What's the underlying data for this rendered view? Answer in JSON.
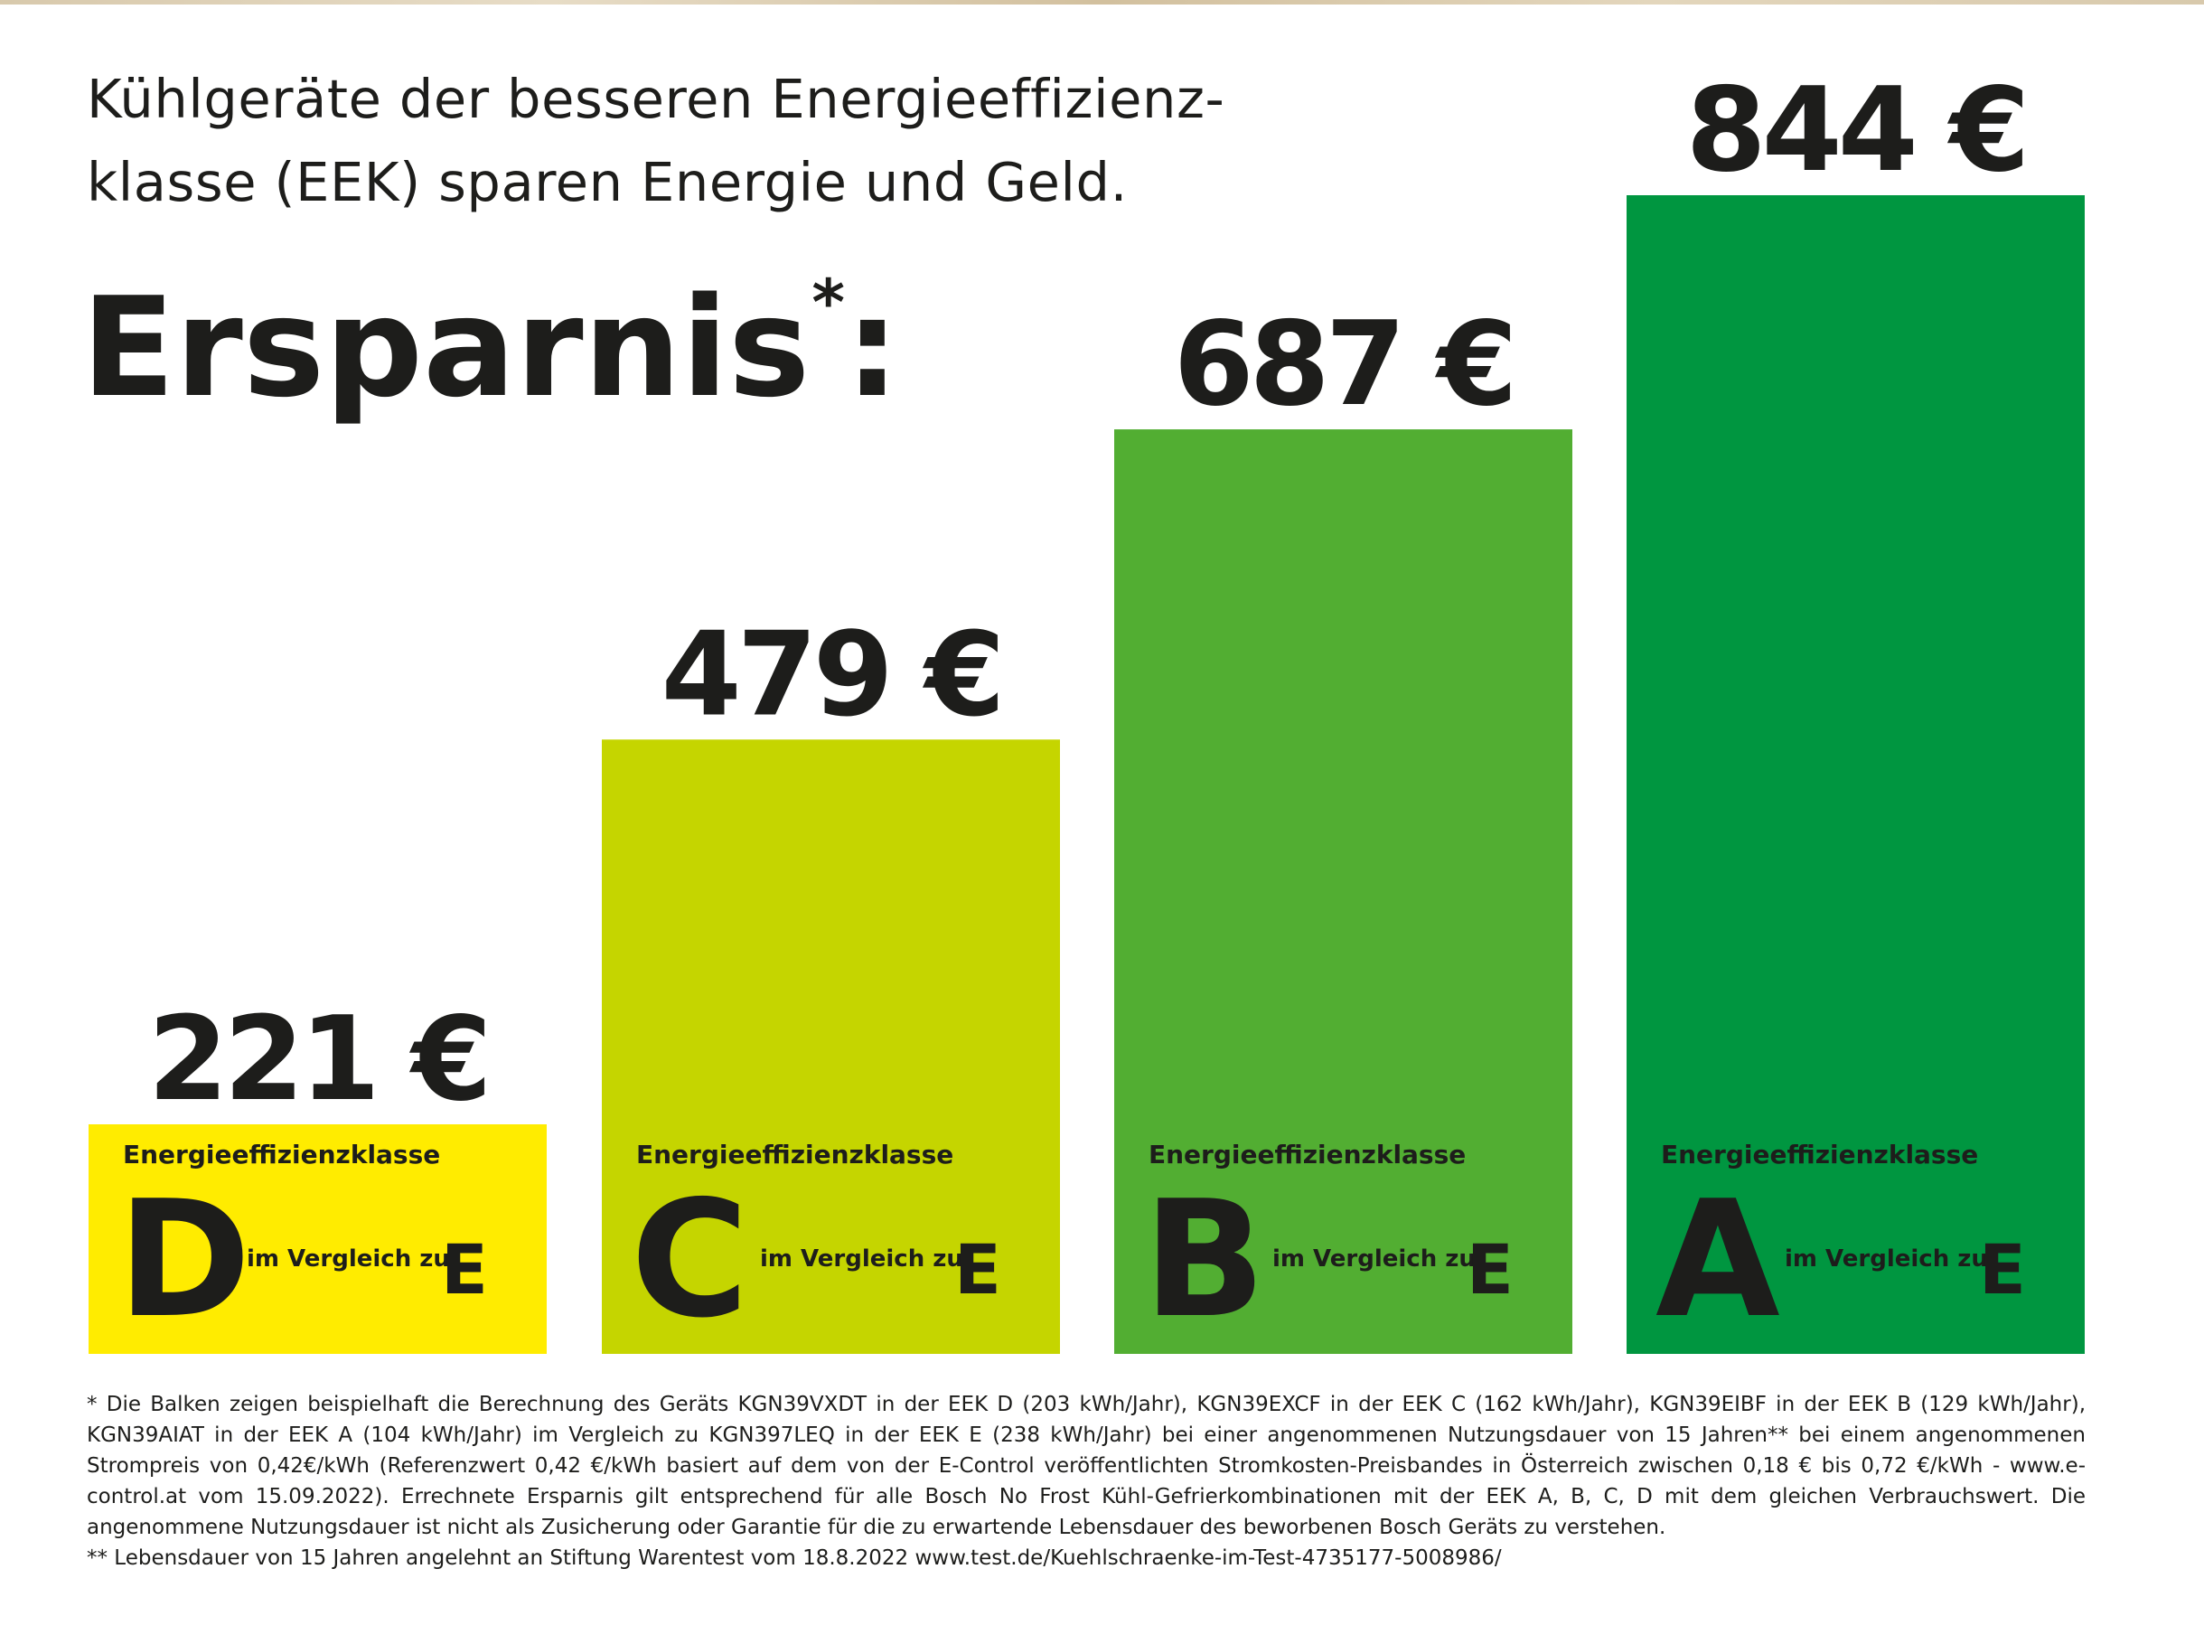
{
  "intro": {
    "line1": "Kühlgeräte der besseren Energieeffizienz-",
    "line2": "klasse (EEK) sparen Energie und Geld."
  },
  "headline": {
    "text": "Ersparnis",
    "asterisk": "*",
    "colon": ":"
  },
  "chart_data": {
    "type": "bar",
    "title": "Ersparnis*:",
    "categories": [
      "D",
      "C",
      "B",
      "A"
    ],
    "values": [
      221,
      479,
      687,
      844
    ],
    "value_labels": [
      "221 €",
      "479 €",
      "687 €",
      "844 €"
    ],
    "unit": "€",
    "colors": [
      "#ffec00",
      "#c5d500",
      "#52ae32",
      "#009640"
    ],
    "class_label": "Energieeffizienzklasse",
    "comparison_text": "im Vergleich zu",
    "reference_class": "E",
    "ylim": [
      0,
      844
    ],
    "grid": false,
    "legend": "none"
  },
  "footnotes": {
    "note1": "* Die Balken zeigen beispielhaft die Berechnung des Geräts KGN39VXDT in der EEK D (203 kWh/Jahr), KGN39EXCF in der EEK C (162 kWh/Jahr), KGN39EIBF in der EEK B (129 kWh/Jahr), KGN39AIAT in der EEK A (104 kWh/Jahr) im Vergleich zu KGN397LEQ in der EEK E (238 kWh/Jahr) bei einer angenommenen Nutzungsdauer von 15 Jahren** bei einem angenommenen Strompreis von 0,42€/kWh (Referenzwert 0,42 €/kWh basiert auf dem von der E-Control veröffentlichten Stromkosten-Preisbandes in Österreich zwischen 0,18 € bis 0,72 €/kWh - www.e-control.at vom 15.09.2022). Errechnete Ersparnis gilt entsprechend für alle Bosch No Frost Kühl-Gefrierkombinationen mit der EEK A, B, C, D mit dem gleichen Verbrauchswert. Die angenommene Nutzungsdauer ist nicht als Zusicherung oder Garantie für die zu erwartende Lebensdauer des beworbenen Bosch Geräts zu verstehen.",
    "note2": "** Lebensdauer von 15 Jahren angelehnt an Stiftung Warentest vom 18.8.2022 www.test.de/Kuehlschraenke-im-Test-4735177-5008986/"
  }
}
